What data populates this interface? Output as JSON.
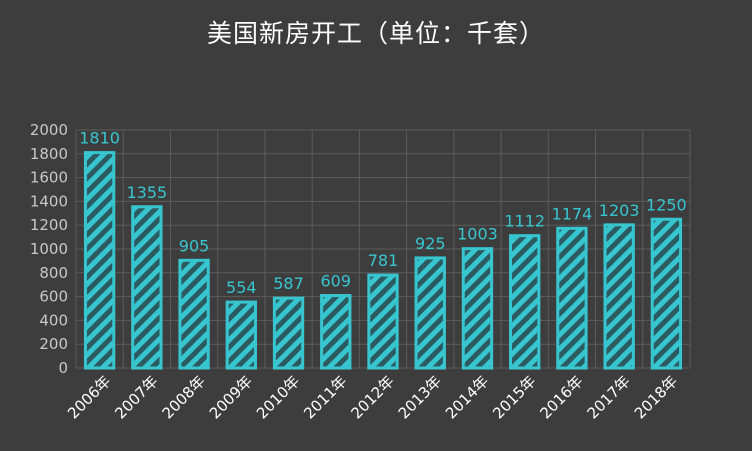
{
  "title": "美国新房开工（单位：千套）",
  "colors": {
    "background": "#3d3d3d",
    "bar_fill": "#2b5a60",
    "bar_stroke": "#37c6d0",
    "bar_stripe": "#37c6d0",
    "data_label": "#37c6d0",
    "grid": "#5c5c5c",
    "tick_label": "#c8c8c8",
    "category_label": "#ffffff"
  },
  "chart_data": {
    "type": "bar",
    "title": "美国新房开工（单位：千套）",
    "categories": [
      "2006年",
      "2007年",
      "2008年",
      "2009年",
      "2010年",
      "2011年",
      "2012年",
      "2013年",
      "2014年",
      "2015年",
      "2016年",
      "2017年",
      "2018年"
    ],
    "values": [
      1810,
      1355,
      905,
      554,
      587,
      609,
      781,
      925,
      1003,
      1112,
      1174,
      1203,
      1250
    ],
    "y_ticks": [
      0,
      200,
      400,
      600,
      800,
      1000,
      1200,
      1400,
      1600,
      1800,
      2000
    ],
    "ylim": [
      0,
      2000
    ],
    "grid": true,
    "bar_pattern": "diagonal-stripes",
    "data_labels": true
  }
}
